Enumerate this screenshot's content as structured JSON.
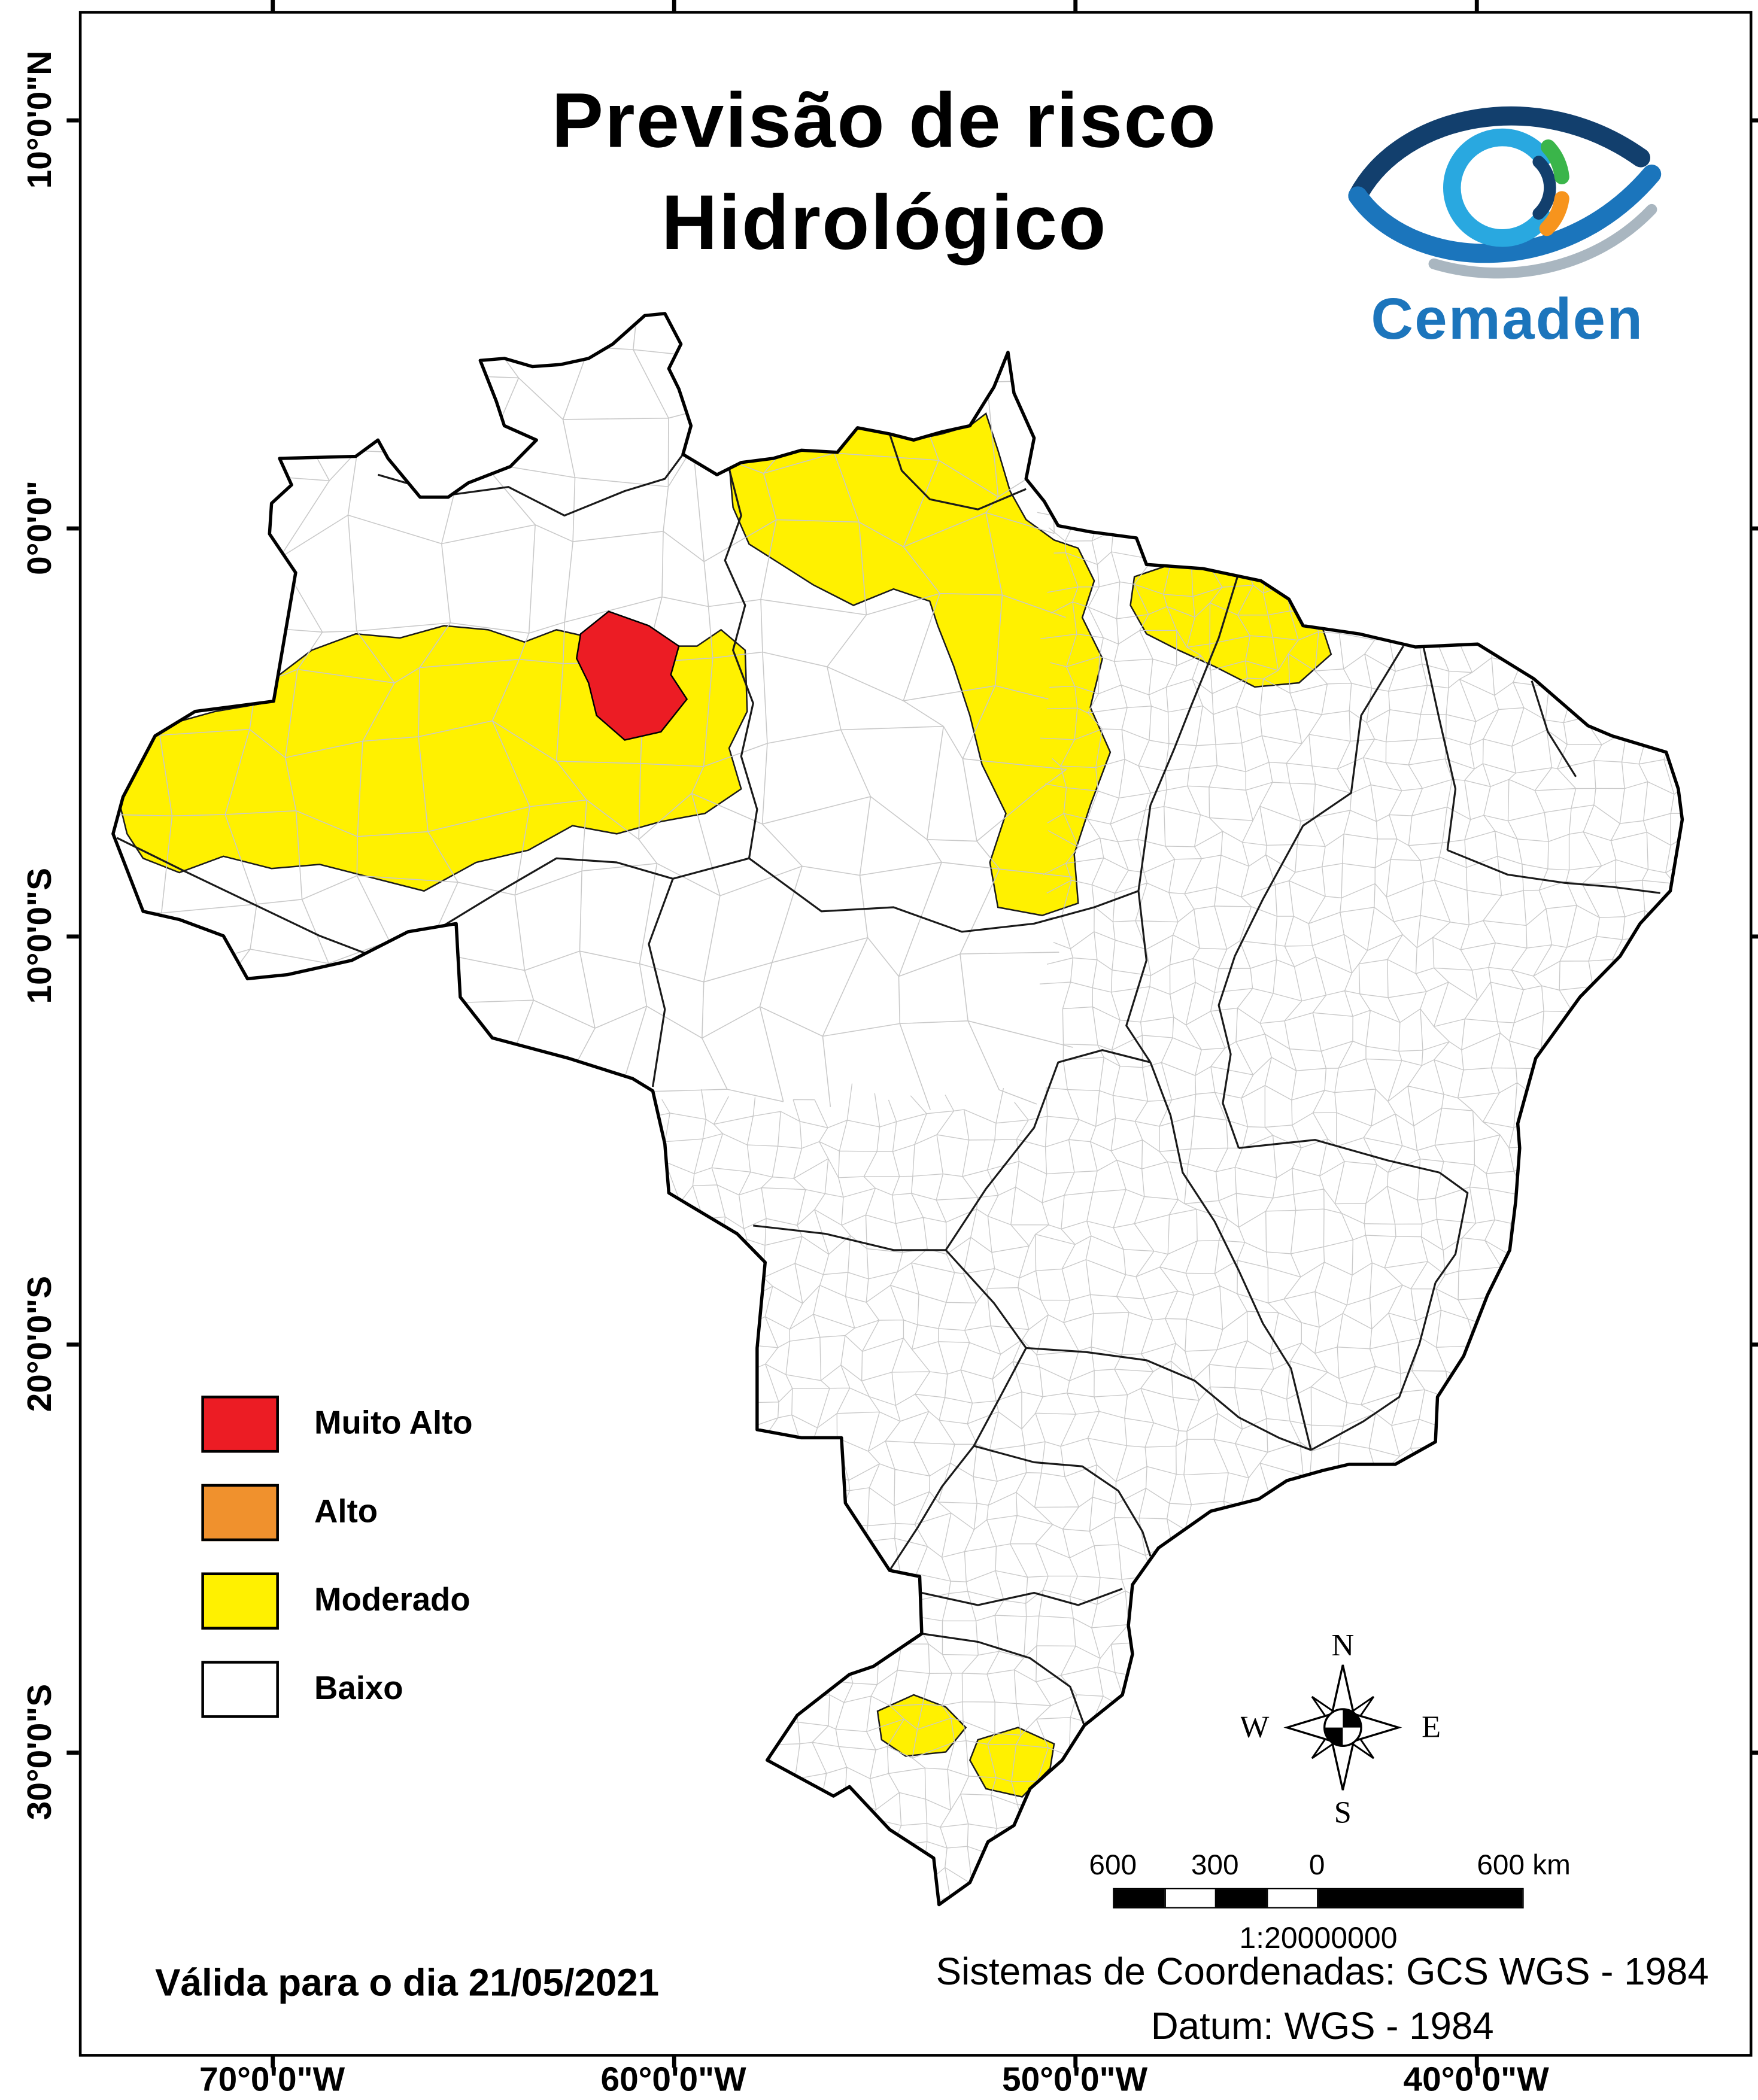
{
  "title": {
    "line1": "Previsão de risco",
    "line2": "Hidrológico"
  },
  "logo": {
    "name": "Cemaden",
    "colors": {
      "navy": "#123F6D",
      "blue": "#1B75BC",
      "light_blue": "#29A8E0",
      "green": "#3AB54A",
      "orange": "#F7941D",
      "silver": "#A9B6C0",
      "text": "#1C75BC"
    }
  },
  "legend": {
    "items": [
      {
        "label": "Muito Alto",
        "color": "#EC1C24"
      },
      {
        "label": "Alto",
        "color": "#F0912D"
      },
      {
        "label": "Moderado",
        "color": "#FFF100"
      },
      {
        "label": "Baixo",
        "color": "#FFFFFF"
      }
    ]
  },
  "map": {
    "country_border_color": "#000000",
    "state_border_color": "#1A1A1A",
    "municipality_line_color": "#C9C9C9",
    "land_color": "#FFFFFF"
  },
  "axes": {
    "left": [
      "10°0'0\"N",
      "0°0'0\"",
      "10°0'0\"S",
      "20°0'0\"S",
      "30°0'0\"S"
    ],
    "bottom": [
      "70°0'0\"W",
      "60°0'0\"W",
      "50°0'0\"W",
      "40°0'0\"W"
    ]
  },
  "compass": {
    "north": "N",
    "east": "E",
    "south": "S",
    "west": "W"
  },
  "scalebar": {
    "labels": [
      "600",
      "300",
      "0",
      "600 km"
    ],
    "ratio": "1:20000000"
  },
  "footer": {
    "validity": "Válida para o dia 21/05/2021",
    "coordinate_system": "Sistemas de Coordenadas: GCS WGS - 1984",
    "datum": "Datum: WGS - 1984"
  }
}
